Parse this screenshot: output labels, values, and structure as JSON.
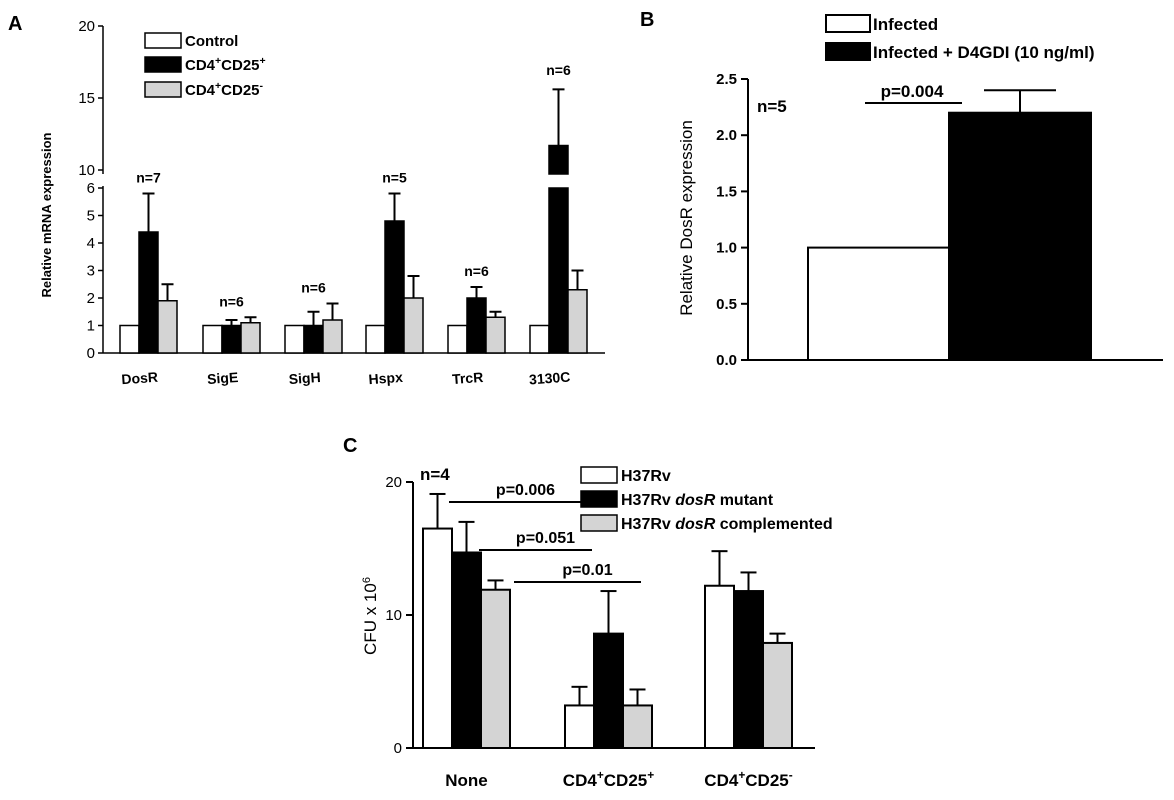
{
  "colors": {
    "control": "#ffffff",
    "cd25pos": "#000000",
    "cd25neg": "#d4d4d4",
    "axis": "#000000"
  },
  "chart_data": [
    {
      "panel": "A",
      "type": "bar",
      "ylabel": "Relative mRNA expression",
      "axis_break": true,
      "ylim_lower": [
        0,
        6
      ],
      "ylim_upper": [
        10,
        20
      ],
      "lower_ticks": [
        "0",
        "1",
        "2",
        "3",
        "4",
        "5",
        "6"
      ],
      "upper_ticks": [
        "10",
        "15",
        "20"
      ],
      "categories": [
        "DosR",
        "SigE",
        "SigH",
        "Hspx",
        "TrcR",
        "3130C"
      ],
      "n_labels": [
        "n=7",
        "n=6",
        "n=6",
        "n=5",
        "n=6",
        "n=6"
      ],
      "legend_position": "top-left",
      "series": [
        {
          "name": "Control",
          "color": "#ffffff",
          "values": [
            1,
            1,
            1,
            1,
            1,
            1
          ],
          "errors": [
            0,
            0,
            0,
            0,
            0,
            0
          ]
        },
        {
          "name": "CD4⁺CD25⁺",
          "color": "#000000",
          "values": [
            4.4,
            1.0,
            1.0,
            4.8,
            2.0,
            11.7
          ],
          "errors": [
            1.4,
            0.2,
            0.5,
            1.0,
            0.4,
            3.9
          ]
        },
        {
          "name": "CD4⁺CD25⁻",
          "color": "#d4d4d4",
          "values": [
            1.9,
            1.1,
            1.2,
            2.0,
            1.3,
            2.3
          ],
          "errors": [
            0.6,
            0.2,
            0.6,
            0.8,
            0.2,
            0.7
          ]
        }
      ]
    },
    {
      "panel": "B",
      "type": "bar",
      "ylabel": "Relative DosR expression",
      "ylim": [
        0,
        2.5
      ],
      "ticks": [
        "0.0",
        "0.5",
        "1.0",
        "1.5",
        "2.0",
        "2.5"
      ],
      "n_label": "n=5",
      "pvalue": "p=0.004",
      "legend_position": "top",
      "series": [
        {
          "name": "Infected",
          "color": "#ffffff",
          "value": 1.0,
          "error": 0
        },
        {
          "name": "Infected + D4GDI (10 ng/ml)",
          "color": "#000000",
          "value": 2.2,
          "error": 0.2
        }
      ]
    },
    {
      "panel": "C",
      "type": "bar",
      "ylabel": "CFU x 10",
      "ylabel_exp": "6",
      "ylim": [
        0,
        20
      ],
      "ticks": [
        "0",
        "10",
        "20"
      ],
      "n_label": "n=4",
      "categories": [
        "None",
        "CD4⁺CD25⁺",
        "CD4⁺CD25⁻"
      ],
      "legend_position": "top-right",
      "series": [
        {
          "name": "H37Rv",
          "color": "#ffffff",
          "values": [
            16.5,
            3.2,
            12.2
          ],
          "errors": [
            2.6,
            1.4,
            2.6
          ]
        },
        {
          "name": "H37Rv dosR mutant",
          "color": "#000000",
          "values": [
            14.7,
            8.6,
            11.8
          ],
          "errors": [
            2.3,
            3.2,
            1.4
          ]
        },
        {
          "name": "H37Rv dosR complemented",
          "color": "#d4d4d4",
          "values": [
            11.9,
            3.2,
            7.9
          ],
          "errors": [
            0.7,
            1.2,
            0.7
          ]
        }
      ],
      "comparisons": [
        {
          "label": "p=0.006",
          "from": "None/H37Rv",
          "to": "CD4⁺CD25⁺/H37Rv"
        },
        {
          "label": "p=0.051",
          "from": "None/H37Rv dosR mutant",
          "to": "CD4⁺CD25⁺/H37Rv dosR mutant"
        },
        {
          "label": "p=0.01",
          "from": "None/H37Rv dosR complemented",
          "to": "CD4⁺CD25⁺/H37Rv dosR complemented"
        }
      ]
    }
  ],
  "panel_labels": [
    "A",
    "B",
    "C"
  ],
  "legendC_parts": [
    {
      "plain": "H37Rv",
      "italic": "",
      "tail": ""
    },
    {
      "plain": "H37Rv ",
      "italic": "dosR",
      "tail": " mutant"
    },
    {
      "plain": "H37Rv ",
      "italic": "dosR",
      "tail": " complemented"
    }
  ]
}
